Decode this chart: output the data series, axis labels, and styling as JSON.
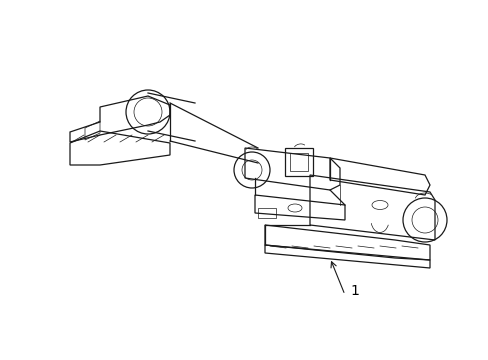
{
  "background_color": "#ffffff",
  "line_color": "#1a1a1a",
  "label_color": "#000000",
  "label_text": "1",
  "label_fontsize": 10,
  "figsize": [
    4.89,
    3.6
  ],
  "dpi": 100,
  "component_linewidth": 0.9,
  "thin_linewidth": 0.5,
  "arrow_linewidth": 0.8
}
